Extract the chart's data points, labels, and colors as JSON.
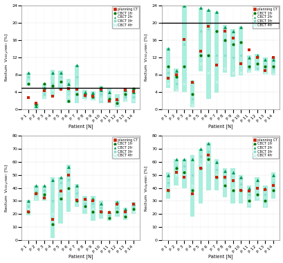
{
  "patients": [
    "P 1",
    "P 2",
    "P 3",
    "P 4",
    "P 5",
    "P 6",
    "P 7",
    "P 8",
    "P 9",
    "P 10",
    "P 11",
    "P 12",
    "P 13",
    "P 14"
  ],
  "subplots": [
    {
      "ylabel": "Rectum  V$_{16Gy(RBE)}$ [%]",
      "ylim": [
        0,
        24
      ],
      "yticks": [
        0,
        2,
        4,
        6,
        8,
        10,
        12,
        14,
        16,
        18,
        20,
        22,
        24
      ],
      "hline": 5.0,
      "planning_ct": [
        2.8,
        1.5,
        4.3,
        3.1,
        4.7,
        4.9,
        4.6,
        3.2,
        3.1,
        4.6,
        2.0,
        2.3,
        4.5,
        4.2
      ],
      "cbct1": [
        6.0,
        1.2,
        6.0,
        5.5,
        6.5,
        2.0,
        3.5,
        3.5,
        3.0,
        5.0,
        2.5,
        1.5,
        3.5,
        4.8
      ],
      "cbct2": [
        8.5,
        0.8,
        5.0,
        8.5,
        8.5,
        6.0,
        10.3,
        4.0,
        3.8,
        4.5,
        4.0,
        2.5,
        4.5,
        4.0
      ],
      "cbct3": [
        7.5,
        0.5,
        3.5,
        6.0,
        7.5,
        4.5,
        7.5,
        3.0,
        2.8,
        3.5,
        3.0,
        2.0,
        3.0,
        3.0
      ],
      "cbct4": [
        6.5,
        0.3,
        2.8,
        4.5,
        6.0,
        3.0,
        5.5,
        2.5,
        2.4,
        2.5,
        2.0,
        1.2,
        2.2,
        2.2
      ],
      "range_min": [
        5.5,
        0.2,
        2.5,
        3.0,
        4.5,
        1.5,
        1.5,
        2.5,
        2.2,
        1.5,
        1.5,
        0.5,
        1.8,
        1.5
      ],
      "range_max": [
        8.5,
        1.5,
        6.0,
        9.2,
        9.0,
        7.0,
        10.3,
        4.5,
        4.2,
        5.5,
        4.8,
        3.5,
        4.8,
        5.0
      ]
    },
    {
      "ylabel": "Rectum  V$_{15Gy(RBE)}$ [%]",
      "ylim": [
        0,
        24
      ],
      "yticks": [
        0,
        2,
        4,
        6,
        8,
        10,
        12,
        14,
        16,
        18,
        20,
        22,
        24
      ],
      "hline": 20.0,
      "planning_ct": [
        7.2,
        8.0,
        16.2,
        6.2,
        13.5,
        19.2,
        10.2,
        18.0,
        16.5,
        10.5,
        13.8,
        12.0,
        9.0,
        12.0
      ],
      "cbct1": [
        10.0,
        7.5,
        10.0,
        3.5,
        12.5,
        12.5,
        18.0,
        16.0,
        15.0,
        15.5,
        10.0,
        10.5,
        10.0,
        10.0
      ],
      "cbct2": [
        14.0,
        9.0,
        24.0,
        6.5,
        23.5,
        23.0,
        22.5,
        19.0,
        18.0,
        19.0,
        12.0,
        12.5,
        11.5,
        11.5
      ],
      "cbct3": [
        8.5,
        6.0,
        15.0,
        2.5,
        18.0,
        18.5,
        12.5,
        12.5,
        12.0,
        12.5,
        9.5,
        9.5,
        9.5,
        9.5
      ],
      "cbct4": [
        6.0,
        4.5,
        6.0,
        1.0,
        10.5,
        8.5,
        6.5,
        9.5,
        8.5,
        8.5,
        8.8,
        9.2,
        8.5,
        8.2
      ],
      "range_min": [
        5.0,
        4.2,
        4.0,
        0.5,
        8.8,
        2.5,
        3.8,
        8.5,
        7.5,
        7.8,
        8.5,
        9.0,
        8.2,
        8.0
      ],
      "range_max": [
        14.2,
        9.5,
        24.0,
        6.8,
        23.5,
        23.0,
        22.5,
        19.5,
        18.5,
        19.2,
        12.5,
        12.8,
        12.0,
        12.0
      ]
    },
    {
      "ylabel": "Rectum  V$_{10Gy(RBE)}$ [%]",
      "ylim": [
        0,
        80
      ],
      "yticks": [
        0,
        5,
        10,
        15,
        20,
        25,
        30,
        35,
        40,
        45,
        50,
        55,
        60,
        65,
        70,
        75,
        80
      ],
      "hline": null,
      "planning_ct": [
        22.0,
        35.5,
        32.5,
        16.0,
        37.5,
        50.0,
        30.5,
        31.5,
        30.2,
        22.0,
        21.0,
        27.5,
        22.0,
        27.5
      ],
      "cbct1": [
        22.0,
        36.0,
        35.0,
        12.0,
        32.0,
        40.0,
        30.0,
        26.0,
        22.0,
        22.0,
        17.0,
        22.0,
        18.0,
        24.0
      ],
      "cbct2": [
        30.0,
        42.0,
        42.0,
        46.0,
        48.0,
        56.0,
        42.0,
        32.0,
        32.0,
        28.0,
        22.0,
        29.0,
        24.0,
        28.0
      ],
      "cbct3": [
        26.0,
        37.0,
        38.0,
        30.0,
        44.0,
        46.0,
        36.0,
        28.0,
        28.0,
        25.0,
        19.0,
        25.0,
        21.0,
        26.0
      ],
      "cbct4": [
        24.0,
        32.0,
        33.0,
        20.0,
        38.0,
        38.0,
        32.0,
        25.0,
        24.0,
        22.0,
        17.0,
        21.0,
        17.0,
        22.0
      ],
      "range_min": [
        19.0,
        30.0,
        30.0,
        1.5,
        12.5,
        22.0,
        25.5,
        20.0,
        15.0,
        16.5,
        15.0,
        18.0,
        15.5,
        20.0
      ],
      "range_max": [
        31.0,
        42.0,
        42.0,
        48.0,
        48.0,
        58.0,
        43.0,
        34.0,
        34.0,
        30.2,
        22.0,
        30.0,
        25.0,
        29.0
      ]
    },
    {
      "ylabel": "Rectum  V$_{5Gy(RBE)}$ [%]",
      "ylim": [
        0,
        80
      ],
      "yticks": [
        0,
        5,
        10,
        15,
        20,
        25,
        30,
        35,
        40,
        45,
        50,
        55,
        60,
        65,
        70,
        75,
        80
      ],
      "hline": null,
      "planning_ct": [
        38.0,
        52.0,
        48.0,
        35.5,
        55.0,
        65.0,
        48.0,
        48.5,
        45.5,
        38.0,
        37.5,
        40.0,
        38.5,
        42.0
      ],
      "cbct1": [
        38.0,
        55.0,
        52.0,
        38.0,
        55.0,
        62.0,
        48.0,
        42.0,
        38.0,
        38.0,
        30.0,
        35.0,
        30.0,
        38.0
      ],
      "cbct2": [
        50.0,
        62.0,
        62.0,
        62.0,
        70.0,
        74.0,
        60.0,
        53.0,
        52.0,
        48.0,
        40.0,
        46.0,
        40.0,
        50.0
      ],
      "cbct3": [
        44.0,
        57.0,
        57.0,
        50.0,
        64.0,
        68.0,
        54.0,
        47.0,
        45.0,
        43.0,
        35.0,
        40.0,
        35.0,
        44.0
      ],
      "cbct4": [
        40.0,
        50.0,
        50.0,
        42.0,
        58.0,
        60.0,
        50.0,
        42.0,
        40.0,
        38.0,
        28.0,
        33.0,
        27.0,
        38.0
      ],
      "range_min": [
        32.0,
        42.0,
        40.0,
        18.0,
        28.0,
        38.0,
        38.0,
        33.0,
        28.0,
        28.0,
        25.0,
        30.0,
        25.0,
        32.0
      ],
      "range_max": [
        52.0,
        62.0,
        62.0,
        65.0,
        70.0,
        75.0,
        62.0,
        55.0,
        55.0,
        50.0,
        42.0,
        48.0,
        42.0,
        52.0
      ]
    }
  ],
  "legend_labels": [
    "planning CT",
    "CBCT 1fr",
    "CBCT 2fr",
    "CBCT 3fr",
    "CBCT 4fr"
  ],
  "colors": {
    "planning_ct": "#cc2200",
    "cbct1": "#007700",
    "cbct2": "#009955",
    "cbct3": "#aaeedd",
    "cbct4": "#aaeedd"
  },
  "marker_cbct3": "o",
  "marker_cbct4": "x",
  "xlabel": "Patient [N]",
  "background_color": "#ffffff",
  "bar_width": 0.55
}
